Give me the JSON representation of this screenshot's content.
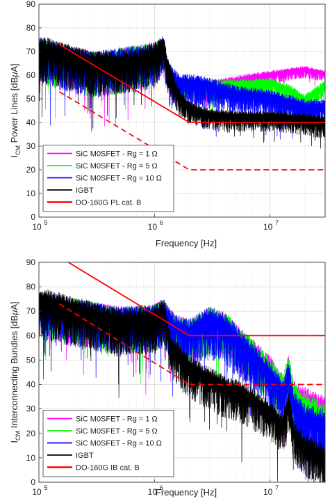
{
  "chart_data": [
    {
      "type": "line",
      "x_scale": "log",
      "xlim": [
        100000,
        30000000
      ],
      "ylim": [
        0,
        90
      ],
      "yticks": [
        0,
        10,
        20,
        30,
        40,
        50,
        60,
        70,
        80,
        90
      ],
      "xticks": [
        {
          "value": 100000,
          "base": "10",
          "exp": "5"
        },
        {
          "value": 1000000,
          "base": "10",
          "exp": "6"
        },
        {
          "value": 10000000,
          "base": "10",
          "exp": "7"
        }
      ],
      "xlabel": "Frequency [Hz]",
      "ylabel": {
        "main": "I",
        "sub": "CM",
        "text": "  Power Lines  [dB",
        "mu": "μ",
        "unit": "A]"
      },
      "grid": true,
      "legend_position": "bottom-left",
      "colors": {
        "magenta": "#ff00ff",
        "green": "#00ff00",
        "blue": "#0000ff",
        "black": "#000000",
        "red": "#ff0000"
      },
      "legend": [
        {
          "label": "SiC M0SFET - Rg = 1 Ω",
          "color": "#ff00ff"
        },
        {
          "label": "SiC M0SFET - Rg = 5 Ω",
          "color": "#00ff00"
        },
        {
          "label": "SiC M0SFET - Rg = 10 Ω",
          "color": "#0000ff"
        },
        {
          "label": "IGBT",
          "color": "#000000"
        },
        {
          "label": "DO-160G PL cat. B",
          "color": "#ff0000"
        }
      ],
      "series": [
        {
          "name": "SiC M0SFET - Rg = 1 Ω",
          "color": "#ff00ff",
          "seed": 11,
          "envelope": [
            [
              100000,
              76
            ],
            [
              300000,
              70
            ],
            [
              1000000,
              74
            ],
            [
              1200000,
              76
            ],
            [
              1300000,
              65
            ],
            [
              1600000,
              59
            ],
            [
              3000000,
              58
            ],
            [
              10000000,
              62
            ],
            [
              20000000,
              64
            ],
            [
              30000000,
              62
            ]
          ],
          "band": [
            [
              100000,
              20
            ],
            [
              1000000,
              20
            ],
            [
              1300000,
              12
            ],
            [
              2000000,
              10
            ],
            [
              10000000,
              6
            ],
            [
              30000000,
              5
            ]
          ]
        },
        {
          "name": "SiC M0SFET - Rg = 5 Ω",
          "color": "#00ff00",
          "seed": 12,
          "envelope": [
            [
              100000,
              76
            ],
            [
              300000,
              70
            ],
            [
              1000000,
              74
            ],
            [
              1200000,
              76
            ],
            [
              1300000,
              65
            ],
            [
              1600000,
              59
            ],
            [
              3000000,
              58
            ],
            [
              10000000,
              59
            ],
            [
              15000000,
              56
            ],
            [
              20000000,
              52
            ],
            [
              30000000,
              58
            ]
          ],
          "band": [
            [
              100000,
              20
            ],
            [
              1000000,
              20
            ],
            [
              1300000,
              12
            ],
            [
              2000000,
              10
            ],
            [
              10000000,
              8
            ],
            [
              30000000,
              8
            ]
          ]
        },
        {
          "name": "SiC M0SFET - Rg = 10 Ω",
          "color": "#0000ff",
          "seed": 13,
          "envelope": [
            [
              100000,
              76
            ],
            [
              300000,
              70
            ],
            [
              1000000,
              74
            ],
            [
              1200000,
              76
            ],
            [
              1300000,
              66
            ],
            [
              1600000,
              61
            ],
            [
              2500000,
              60
            ],
            [
              5000000,
              56
            ],
            [
              10000000,
              54
            ],
            [
              20000000,
              50
            ],
            [
              30000000,
              50
            ]
          ],
          "band": [
            [
              100000,
              20
            ],
            [
              1000000,
              20
            ],
            [
              1300000,
              14
            ],
            [
              2000000,
              14
            ],
            [
              10000000,
              12
            ],
            [
              30000000,
              12
            ]
          ]
        },
        {
          "name": "IGBT",
          "color": "#000000",
          "seed": 14,
          "envelope": [
            [
              100000,
              77
            ],
            [
              300000,
              70
            ],
            [
              700000,
              71
            ],
            [
              1000000,
              74
            ],
            [
              1200000,
              77
            ],
            [
              1300000,
              68
            ],
            [
              1600000,
              55
            ],
            [
              2000000,
              49
            ],
            [
              3000000,
              46
            ],
            [
              5000000,
              45
            ],
            [
              10000000,
              45
            ],
            [
              20000000,
              44
            ],
            [
              30000000,
              43
            ]
          ],
          "band": [
            [
              100000,
              20
            ],
            [
              1000000,
              18
            ],
            [
              1300000,
              14
            ],
            [
              2000000,
              10
            ],
            [
              5000000,
              9
            ],
            [
              10000000,
              9
            ],
            [
              30000000,
              10
            ]
          ]
        }
      ],
      "limit_lines": [
        {
          "name": "DO-160G PL cat. B",
          "style": "solid",
          "color": "#ff0000",
          "points": [
            [
              150000,
              73
            ],
            [
              2000000,
              40
            ],
            [
              30000000,
              40
            ]
          ],
          "drop_to": 40
        },
        {
          "name": "DO-160G PL cat. B",
          "style": "dashed",
          "color": "#ff0000",
          "points": [
            [
              150000,
              53
            ],
            [
              2000000,
              20
            ],
            [
              30000000,
              20
            ]
          ]
        }
      ]
    },
    {
      "type": "line",
      "x_scale": "log",
      "xlim": [
        100000,
        30000000
      ],
      "ylim": [
        0,
        90
      ],
      "yticks": [
        0,
        10,
        20,
        30,
        40,
        50,
        60,
        70,
        80,
        90
      ],
      "xticks": [
        {
          "value": 100000,
          "base": "10",
          "exp": "5"
        },
        {
          "value": 1000000,
          "base": "10",
          "exp": "6"
        },
        {
          "value": 10000000,
          "base": "10",
          "exp": "7"
        }
      ],
      "xlabel": "Frequency [Hz]",
      "ylabel": {
        "main": "I",
        "sub": "CM",
        "text": "  Interconnecting Bundles  [dB",
        "mu": "μ",
        "unit": "A]"
      },
      "grid": true,
      "legend_position": "bottom-left",
      "colors": {
        "magenta": "#ff00ff",
        "green": "#00ff00",
        "blue": "#0000ff",
        "black": "#000000",
        "red": "#ff0000"
      },
      "legend": [
        {
          "label": "SiC M0SFET - Rg = 1 Ω",
          "color": "#ff00ff"
        },
        {
          "label": "SiC M0SFET - Rg = 5 Ω",
          "color": "#00ff00"
        },
        {
          "label": "SiC M0SFET - Rg = 10 Ω",
          "color": "#0000ff"
        },
        {
          "label": "IGBT",
          "color": "#000000"
        },
        {
          "label": "DO-160G IB cat. B",
          "color": "#ff0000"
        }
      ],
      "series": [
        {
          "name": "SiC M0SFET - Rg = 1 Ω",
          "color": "#ff00ff",
          "seed": 21,
          "envelope": [
            [
              100000,
              78
            ],
            [
              500000,
              72
            ],
            [
              1000000,
              73
            ],
            [
              1200000,
              75
            ],
            [
              1500000,
              69
            ],
            [
              2000000,
              67
            ],
            [
              3000000,
              72
            ],
            [
              4000000,
              70
            ],
            [
              6000000,
              62
            ],
            [
              10000000,
              52
            ],
            [
              13000000,
              44
            ],
            [
              14500000,
              53
            ],
            [
              16000000,
              42
            ],
            [
              20000000,
              39
            ],
            [
              30000000,
              36
            ]
          ],
          "band": [
            [
              100000,
              20
            ],
            [
              1000000,
              20
            ],
            [
              3000000,
              20
            ],
            [
              10000000,
              18
            ],
            [
              20000000,
              22
            ],
            [
              30000000,
              22
            ]
          ]
        },
        {
          "name": "SiC M0SFET - Rg = 5 Ω",
          "color": "#00ff00",
          "seed": 22,
          "envelope": [
            [
              100000,
              78
            ],
            [
              500000,
              72
            ],
            [
              1000000,
              73
            ],
            [
              1200000,
              75
            ],
            [
              1500000,
              69
            ],
            [
              2000000,
              67
            ],
            [
              3000000,
              72
            ],
            [
              4000000,
              70
            ],
            [
              6000000,
              62
            ],
            [
              10000000,
              51
            ],
            [
              13000000,
              44
            ],
            [
              14500000,
              53
            ],
            [
              16000000,
              41
            ],
            [
              20000000,
              37
            ],
            [
              30000000,
              33
            ]
          ],
          "band": [
            [
              100000,
              20
            ],
            [
              1000000,
              20
            ],
            [
              3000000,
              20
            ],
            [
              10000000,
              18
            ],
            [
              20000000,
              22
            ],
            [
              30000000,
              24
            ]
          ]
        },
        {
          "name": "SiC M0SFET - Rg = 10 Ω",
          "color": "#0000ff",
          "seed": 23,
          "envelope": [
            [
              100000,
              78
            ],
            [
              500000,
              72
            ],
            [
              1000000,
              73
            ],
            [
              1200000,
              75
            ],
            [
              1500000,
              69
            ],
            [
              2000000,
              67
            ],
            [
              3000000,
              72
            ],
            [
              4000000,
              70
            ],
            [
              6000000,
              61
            ],
            [
              10000000,
              49
            ],
            [
              13000000,
              42
            ],
            [
              14500000,
              50
            ],
            [
              16000000,
              38
            ],
            [
              20000000,
              32
            ],
            [
              30000000,
              30
            ]
          ],
          "band": [
            [
              100000,
              20
            ],
            [
              1000000,
              20
            ],
            [
              3000000,
              22
            ],
            [
              10000000,
              20
            ],
            [
              20000000,
              24
            ],
            [
              30000000,
              26
            ]
          ]
        },
        {
          "name": "IGBT",
          "color": "#000000",
          "seed": 24,
          "envelope": [
            [
              100000,
              80
            ],
            [
              500000,
              71
            ],
            [
              1000000,
              72
            ],
            [
              1200000,
              76
            ],
            [
              1400000,
              60
            ],
            [
              2000000,
              52
            ],
            [
              4000000,
              44
            ],
            [
              6000000,
              41
            ],
            [
              10000000,
              33
            ],
            [
              13000000,
              28
            ],
            [
              14500000,
              38
            ],
            [
              16000000,
              25
            ],
            [
              20000000,
              20
            ],
            [
              30000000,
              15
            ]
          ],
          "band": [
            [
              100000,
              20
            ],
            [
              1000000,
              20
            ],
            [
              2000000,
              18
            ],
            [
              6000000,
              18
            ],
            [
              10000000,
              16
            ],
            [
              20000000,
              18
            ],
            [
              30000000,
              18
            ]
          ]
        }
      ],
      "limit_lines": [
        {
          "name": "DO-160G IB cat. B",
          "style": "solid",
          "color": "#ff0000",
          "points": [
            [
              180000,
              90
            ],
            [
              2000000,
              60
            ],
            [
              30000000,
              60
            ]
          ],
          "drop_to": 60
        },
        {
          "name": "DO-160G IB cat. B",
          "style": "dashed",
          "color": "#ff0000",
          "points": [
            [
              150000,
              73
            ],
            [
              2000000,
              40
            ],
            [
              30000000,
              40
            ]
          ]
        }
      ]
    }
  ]
}
